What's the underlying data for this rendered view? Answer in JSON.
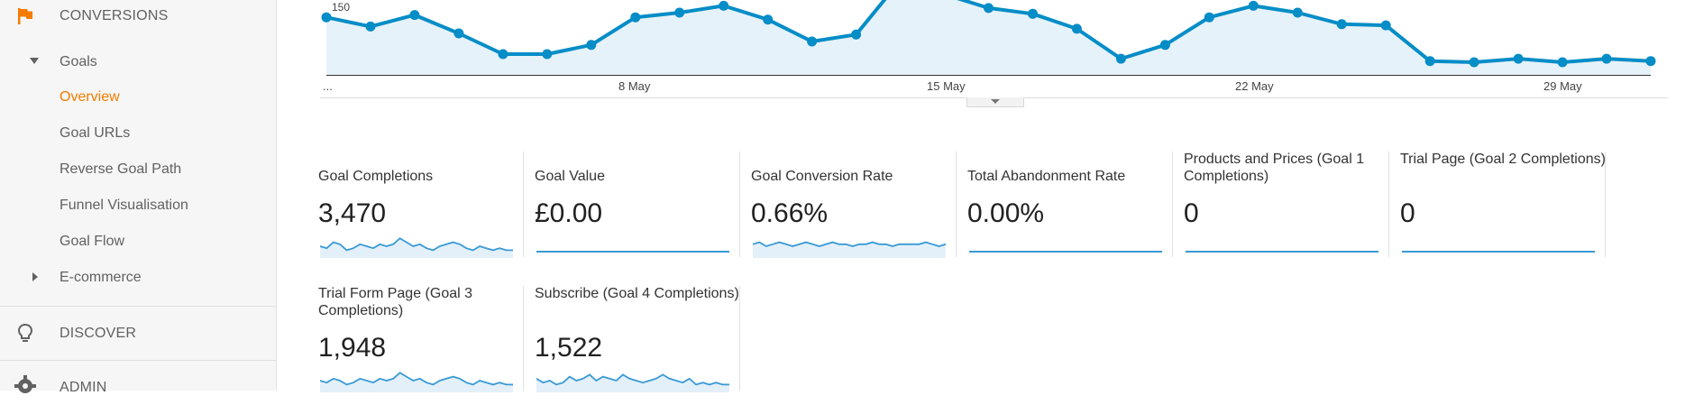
{
  "sidebar": {
    "conversions_label": "CONVERSIONS",
    "goals_label": "Goals",
    "goal_items": [
      {
        "label": "Overview",
        "active": true
      },
      {
        "label": "Goal URLs",
        "active": false
      },
      {
        "label": "Reverse Goal Path",
        "active": false
      },
      {
        "label": "Funnel Visualisation",
        "active": false
      },
      {
        "label": "Goal Flow",
        "active": false
      }
    ],
    "ecommerce_label": "E-commerce",
    "discover_label": "DISCOVER",
    "admin_label": "ADMIN"
  },
  "chart_data": {
    "type": "area",
    "color": "#058dc7",
    "fill": "#e6f2f9",
    "y_tick_label": "150",
    "x_tick_labels": [
      "...",
      "8 May",
      "15 May",
      "22 May",
      "29 May"
    ],
    "y_values": [
      180,
      172,
      182,
      166,
      148,
      148,
      156,
      180,
      184,
      190,
      178,
      159,
      165,
      212,
      200,
      188,
      183,
      170,
      144,
      156,
      180,
      190,
      184,
      174,
      173,
      142,
      141,
      144,
      141,
      144,
      142
    ]
  },
  "metrics": [
    {
      "name": "Goal Completions",
      "value": "3,470",
      "spark": [
        5,
        4,
        7,
        6,
        3,
        4,
        6,
        5,
        4,
        6,
        5,
        6,
        9,
        7,
        5,
        6,
        4,
        3,
        5,
        6,
        7,
        6,
        4,
        3,
        5,
        4,
        3,
        4,
        3,
        3
      ]
    },
    {
      "name": "Goal Value",
      "value": "£0.00",
      "spark": "flat"
    },
    {
      "name": "Goal Conversion Rate",
      "value": "0.66%",
      "spark": [
        6,
        7,
        5,
        6,
        7,
        6,
        5,
        6,
        7,
        6,
        5,
        6,
        7,
        6,
        6,
        5,
        6,
        6,
        7,
        6,
        6,
        5,
        6,
        6,
        6,
        6,
        7,
        6,
        5,
        6
      ]
    },
    {
      "name": "Total Abandonment Rate",
      "value": "0.00%",
      "spark": "flat"
    },
    {
      "name": "Products and Prices (Goal 1 Completions)",
      "value": "0",
      "spark": "flat"
    },
    {
      "name": "Trial Page (Goal 2 Completions)",
      "value": "0",
      "spark": "flat"
    },
    {
      "name": "Trial Form Page (Goal 3 Completions)",
      "value": "1,948",
      "spark": [
        5,
        4,
        6,
        5,
        3,
        4,
        6,
        5,
        4,
        6,
        5,
        6,
        9,
        7,
        5,
        6,
        4,
        3,
        5,
        6,
        7,
        6,
        4,
        3,
        5,
        4,
        3,
        4,
        3,
        3
      ]
    },
    {
      "name": "Subscribe (Goal 4 Completions)",
      "value": "1,522",
      "spark": [
        6,
        4,
        5,
        3,
        4,
        7,
        5,
        6,
        8,
        5,
        7,
        6,
        5,
        8,
        6,
        5,
        4,
        5,
        6,
        8,
        6,
        5,
        4,
        6,
        3,
        4,
        3,
        4,
        3,
        3
      ]
    }
  ]
}
